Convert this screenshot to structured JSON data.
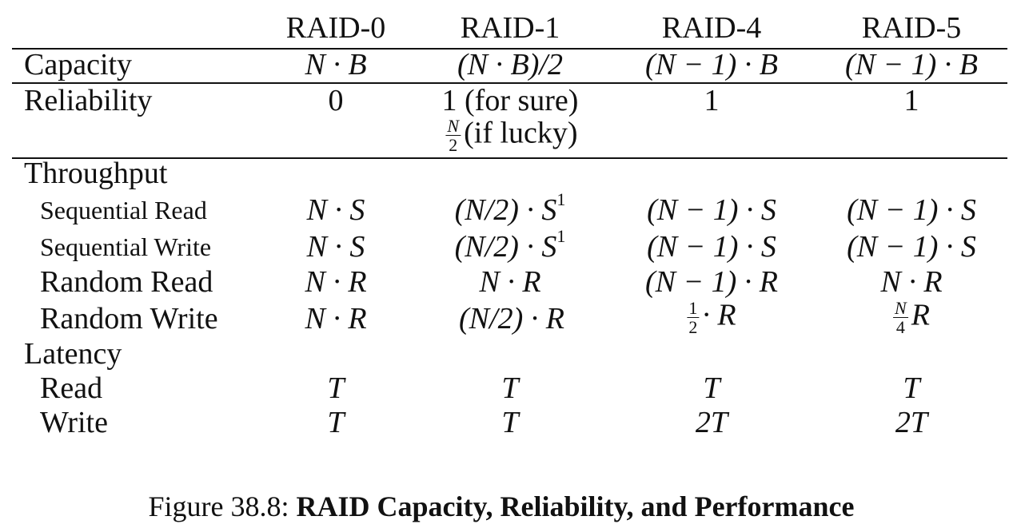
{
  "table": {
    "columns": [
      "RAID-0",
      "RAID-1",
      "RAID-4",
      "RAID-5"
    ],
    "rows": [
      {
        "label": "Capacity",
        "cells": [
          "N · B",
          "(N · B)/2",
          "(N − 1) · B",
          "(N − 1) · B"
        ]
      },
      {
        "label": "Reliability",
        "cells": [
          "0",
          "1 (for sure)",
          "1",
          "1"
        ],
        "extra": {
          "fraction": {
            "num": "N",
            "den": "2"
          },
          "text": "(if lucky)"
        }
      },
      {
        "label": "Throughput",
        "group": true
      },
      {
        "label": "Sequential Read",
        "cells": [
          "N · S",
          "(N/2) · S",
          "(N − 1) · S",
          "(N − 1) · S"
        ],
        "footnote": "1"
      },
      {
        "label": "Sequential Write",
        "cells": [
          "N · S",
          "(N/2) · S",
          "(N − 1) · S",
          "(N − 1) · S"
        ],
        "footnote": "1"
      },
      {
        "label": "Random Read",
        "cells": [
          "N · R",
          "N · R",
          "(N − 1) · R",
          "N · R"
        ]
      },
      {
        "label": "Random Write",
        "cells": [
          "N · R",
          "(N/2) · R",
          "· R",
          "R"
        ],
        "fractions": {
          "raid4": {
            "num": "1",
            "den": "2"
          },
          "raid5": {
            "num": "N",
            "den": "4"
          }
        }
      },
      {
        "label": "Latency",
        "group": true
      },
      {
        "label": "Read",
        "cells": [
          "T",
          "T",
          "T",
          "T"
        ]
      },
      {
        "label": "Write",
        "cells": [
          "T",
          "T",
          "2T",
          "2T"
        ]
      }
    ]
  },
  "caption": {
    "prefix": "Figure 38.8: ",
    "title": "RAID Capacity, Reliability, and Performance"
  }
}
